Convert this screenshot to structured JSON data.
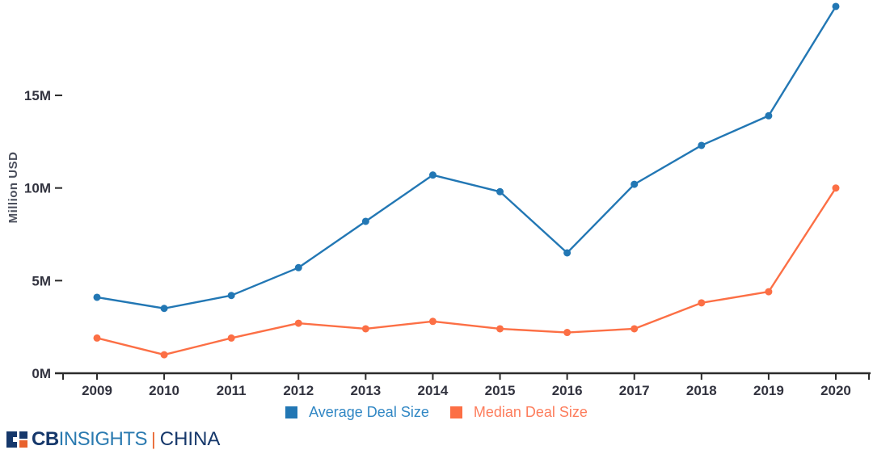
{
  "chart_data": {
    "type": "line",
    "title": "",
    "xlabel": "",
    "ylabel": "Million USD",
    "categories": [
      "2009",
      "2010",
      "2011",
      "2012",
      "2013",
      "2014",
      "2015",
      "2016",
      "2017",
      "2018",
      "2019",
      "2020"
    ],
    "series": [
      {
        "name": "Average Deal Size",
        "color": "#2277b4",
        "text_color": "#3187c4",
        "values": [
          4.1,
          3.5,
          4.2,
          5.7,
          8.2,
          10.7,
          9.8,
          6.5,
          10.2,
          12.3,
          13.9,
          19.8
        ]
      },
      {
        "name": "Median Deal Size",
        "color": "#fc6f45",
        "text_color": "#fd7d5c",
        "values": [
          1.9,
          1.0,
          1.9,
          2.7,
          2.4,
          2.8,
          2.4,
          2.2,
          2.4,
          3.8,
          4.4,
          10.0
        ]
      }
    ],
    "yticks": [
      {
        "value": 0,
        "label": "0M"
      },
      {
        "value": 5,
        "label": "5M"
      },
      {
        "value": 10,
        "label": "10M"
      },
      {
        "value": 15,
        "label": "15M"
      }
    ],
    "ylim": [
      0,
      20
    ],
    "grid": false,
    "legend_position": "bottom"
  },
  "footer": {
    "brand_bold": "CB",
    "brand_light": "INSIGHTS",
    "separator": "|",
    "region": "CHINA"
  },
  "colors": {
    "axis": "#2b2b2b",
    "logo_navy": "#16386b",
    "logo_blue": "#2a7ab0",
    "logo_orange": "#e8622d"
  }
}
